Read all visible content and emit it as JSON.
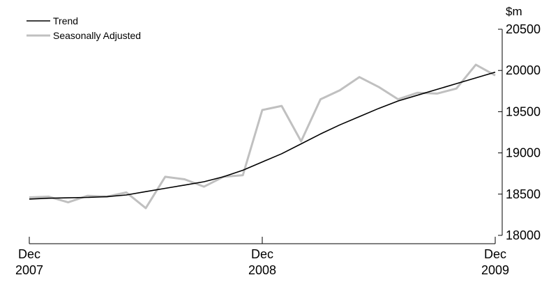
{
  "chart_data": {
    "type": "line",
    "title": "",
    "xlabel": "",
    "ylabel": "$m",
    "x": [
      "Dec 2007",
      "Jan 2008",
      "Feb 2008",
      "Mar 2008",
      "Apr 2008",
      "May 2008",
      "Jun 2008",
      "Jul 2008",
      "Aug 2008",
      "Sep 2008",
      "Oct 2008",
      "Nov 2008",
      "Dec 2008",
      "Jan 2009",
      "Feb 2009",
      "Mar 2009",
      "Apr 2009",
      "May 2009",
      "Jun 2009",
      "Jul 2009",
      "Aug 2009",
      "Sep 2009",
      "Oct 2009",
      "Nov 2009",
      "Dec 2009"
    ],
    "series": [
      {
        "name": "Trend",
        "color": "#000000",
        "values": [
          18440,
          18450,
          18455,
          18460,
          18470,
          18490,
          18530,
          18570,
          18610,
          18650,
          18710,
          18790,
          18890,
          18990,
          19110,
          19230,
          19340,
          19440,
          19540,
          19630,
          19700,
          19770,
          19840,
          19910,
          19980
        ]
      },
      {
        "name": "Seasonally Adjusted",
        "color": "#c0c0c0",
        "values": [
          18460,
          18470,
          18400,
          18480,
          18470,
          18520,
          18330,
          18710,
          18680,
          18590,
          18710,
          18730,
          19520,
          19570,
          19140,
          19650,
          19760,
          19920,
          19800,
          19650,
          19730,
          19720,
          19780,
          20070,
          19940
        ]
      }
    ],
    "ylim": [
      18000,
      20500
    ],
    "yticks": [
      "18000",
      "18500",
      "19000",
      "19500",
      "20000",
      "20500"
    ],
    "xticks": [
      {
        "index": 0,
        "line1": "Dec",
        "line2": "2007"
      },
      {
        "index": 12,
        "line1": "Dec",
        "line2": "2008"
      },
      {
        "index": 24,
        "line1": "Dec",
        "line2": "2009"
      }
    ],
    "grid": false,
    "legend_position": "top-left"
  }
}
